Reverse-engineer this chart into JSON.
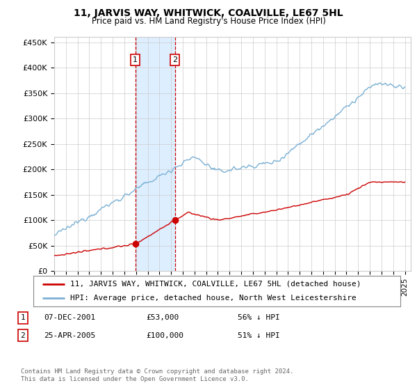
{
  "title": "11, JARVIS WAY, WHITWICK, COALVILLE, LE67 5HL",
  "subtitle": "Price paid vs. HM Land Registry's House Price Index (HPI)",
  "ylabel_ticks": [
    "£0",
    "£50K",
    "£100K",
    "£150K",
    "£200K",
    "£250K",
    "£300K",
    "£350K",
    "£400K",
    "£450K"
  ],
  "ytick_values": [
    0,
    50000,
    100000,
    150000,
    200000,
    250000,
    300000,
    350000,
    400000,
    450000
  ],
  "ylim": [
    0,
    460000
  ],
  "xlim_start": 1995.0,
  "xlim_end": 2025.5,
  "transaction1": {
    "date_num": 2001.93,
    "price": 53000,
    "label": "1"
  },
  "transaction2": {
    "date_num": 2005.32,
    "price": 100000,
    "label": "2"
  },
  "legend_red": "11, JARVIS WAY, WHITWICK, COALVILLE, LE67 5HL (detached house)",
  "legend_blue": "HPI: Average price, detached house, North West Leicestershire",
  "table_rows": [
    {
      "num": "1",
      "date": "07-DEC-2001",
      "price": "£53,000",
      "pct": "56% ↓ HPI"
    },
    {
      "num": "2",
      "date": "25-APR-2005",
      "price": "£100,000",
      "pct": "51% ↓ HPI"
    }
  ],
  "footnote": "Contains HM Land Registry data © Crown copyright and database right 2024.\nThis data is licensed under the Open Government Licence v3.0.",
  "red_color": "#cc0000",
  "blue_color": "#7ab0d4",
  "shade_color": "#ddeeff",
  "grid_color": "#cccccc",
  "background_color": "#ffffff"
}
